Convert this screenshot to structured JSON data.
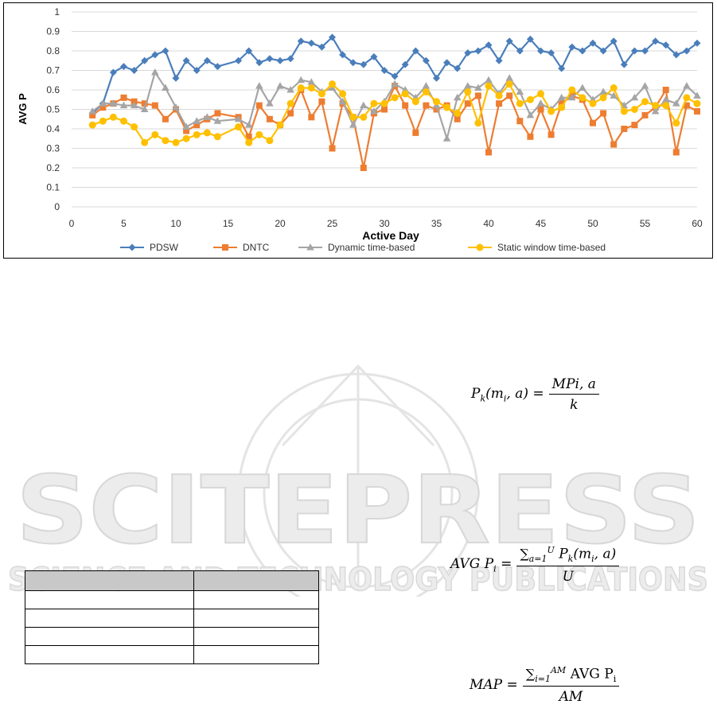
{
  "chart_data": {
    "type": "line",
    "xlabel": "Active Day",
    "ylabel": "AVG P",
    "xlim": [
      0,
      60
    ],
    "ylim": [
      0,
      1
    ],
    "xticks": [
      "0",
      "5",
      "10",
      "15",
      "20",
      "25",
      "30",
      "35",
      "40",
      "45",
      "50",
      "55",
      "60"
    ],
    "yticks": [
      "0",
      "0.1",
      "0.2",
      "0.3",
      "0.4",
      "0.5",
      "0.6",
      "0.7",
      "0.8",
      "0.9",
      "1"
    ],
    "grid": "horizontal",
    "legend_position": "bottom",
    "x": [
      2,
      3,
      4,
      5,
      6,
      7,
      8,
      9,
      10,
      11,
      12,
      13,
      14,
      16,
      17,
      18,
      19,
      20,
      21,
      22,
      23,
      24,
      25,
      26,
      27,
      28,
      29,
      30,
      31,
      32,
      33,
      34,
      35,
      36,
      37,
      38,
      39,
      40,
      41,
      42,
      43,
      44,
      45,
      46,
      47,
      48,
      49,
      50,
      51,
      52,
      53,
      54,
      55,
      56,
      57,
      58,
      59,
      60
    ],
    "series": [
      {
        "name": "PDSW",
        "color": "#4a7ebb",
        "marker": "diamond",
        "values": [
          0.48,
          0.53,
          0.69,
          0.72,
          0.7,
          0.75,
          0.78,
          0.8,
          0.66,
          0.75,
          0.7,
          0.75,
          0.72,
          0.75,
          0.8,
          0.74,
          0.76,
          0.75,
          0.76,
          0.85,
          0.84,
          0.82,
          0.87,
          0.78,
          0.74,
          0.73,
          0.77,
          0.7,
          0.67,
          0.73,
          0.8,
          0.75,
          0.66,
          0.74,
          0.71,
          0.79,
          0.8,
          0.83,
          0.75,
          0.85,
          0.8,
          0.86,
          0.8,
          0.79,
          0.71,
          0.82,
          0.8,
          0.84,
          0.8,
          0.85,
          0.73,
          0.8,
          0.8,
          0.85,
          0.83,
          0.78,
          0.8,
          0.84
        ]
      },
      {
        "name": "DNTC",
        "color": "#ed7d31",
        "marker": "square",
        "values": [
          0.47,
          0.51,
          0.53,
          0.56,
          0.54,
          0.53,
          0.52,
          0.45,
          0.5,
          0.39,
          0.42,
          0.45,
          0.48,
          0.46,
          0.36,
          0.52,
          0.45,
          0.42,
          0.48,
          0.6,
          0.46,
          0.54,
          0.3,
          0.53,
          0.46,
          0.2,
          0.48,
          0.5,
          0.62,
          0.52,
          0.38,
          0.52,
          0.5,
          0.52,
          0.45,
          0.53,
          0.57,
          0.28,
          0.53,
          0.57,
          0.44,
          0.36,
          0.5,
          0.37,
          0.53,
          0.57,
          0.55,
          0.43,
          0.48,
          0.32,
          0.4,
          0.42,
          0.47,
          0.51,
          0.6,
          0.28,
          0.52,
          0.49
        ]
      },
      {
        "name": "Dynamic time-based",
        "color": "#a5a5a5",
        "marker": "triangle",
        "values": [
          0.49,
          0.53,
          0.53,
          0.52,
          0.52,
          0.5,
          0.69,
          0.61,
          0.51,
          0.41,
          0.44,
          0.46,
          0.44,
          0.45,
          0.42,
          0.62,
          0.53,
          0.62,
          0.6,
          0.65,
          0.64,
          0.59,
          0.61,
          0.54,
          0.42,
          0.52,
          0.49,
          0.54,
          0.63,
          0.6,
          0.56,
          0.62,
          0.52,
          0.35,
          0.56,
          0.62,
          0.61,
          0.65,
          0.58,
          0.66,
          0.59,
          0.47,
          0.53,
          0.5,
          0.56,
          0.56,
          0.61,
          0.55,
          0.59,
          0.57,
          0.52,
          0.56,
          0.62,
          0.49,
          0.55,
          0.53,
          0.62,
          0.57
        ]
      },
      {
        "name": "Static window time-based",
        "color": "#ffc000",
        "marker": "circle",
        "values": [
          0.42,
          0.44,
          0.46,
          0.44,
          0.41,
          0.33,
          0.37,
          0.34,
          0.33,
          0.35,
          0.37,
          0.38,
          0.36,
          0.41,
          0.33,
          0.37,
          0.34,
          0.42,
          0.53,
          0.61,
          0.61,
          0.58,
          0.63,
          0.58,
          0.46,
          0.46,
          0.53,
          0.53,
          0.56,
          0.58,
          0.54,
          0.59,
          0.54,
          0.51,
          0.48,
          0.59,
          0.43,
          0.62,
          0.57,
          0.63,
          0.53,
          0.55,
          0.58,
          0.49,
          0.51,
          0.6,
          0.56,
          0.53,
          0.56,
          0.61,
          0.49,
          0.5,
          0.54,
          0.52,
          0.52,
          0.43,
          0.56,
          0.53
        ]
      }
    ]
  },
  "equations": {
    "pk": {
      "lhs": "P",
      "sub": "k",
      "args": "(m",
      "args_sub": "i",
      "args_end": ", a) =",
      "num": "MPi, a",
      "den": "k"
    },
    "avg": {
      "lhs": "AVG P",
      "sub": "i",
      "eq": "=",
      "num_sum": "∑",
      "num_sup": "U",
      "num_sub": "a=1",
      "num_rest": "P",
      "num_rest_sub": "k",
      "num_args": "(m",
      "num_args_sub": "i",
      "num_args_end": ", a)",
      "den": "U"
    },
    "map": {
      "lhs": "MAP =",
      "num_sum": "∑",
      "num_sup": "AM",
      "num_sub": "i=1",
      "num_rest": "AVG P",
      "num_rest_sub": "i",
      "den": "AM"
    }
  },
  "watermark": {
    "line1": "SCITEPRESS",
    "line2": "SCIENCE AND TECHNOLOGY PUBLICATIONS"
  }
}
